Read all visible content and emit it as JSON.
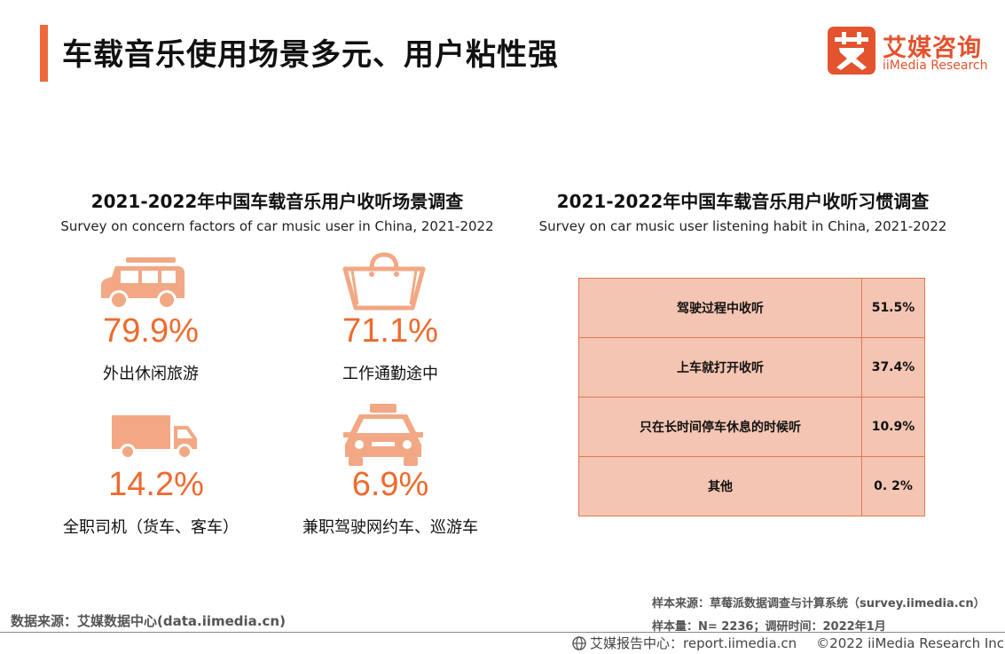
{
  "header": {
    "title": "车载音乐使用场景多元、用户粘性强",
    "logo_cn": "艾媒咨询",
    "logo_en": "iiMedia Research",
    "accent_color": "#EE6A3A"
  },
  "left_section": {
    "title": "2021-2022年中国车载音乐用户收听场景调查",
    "subtitle": "Survey on concern factors of car music user in China, 2021-2022",
    "items": [
      {
        "icon": "suv-icon",
        "value": "79.9%",
        "label": "外出休闲旅游"
      },
      {
        "icon": "handbag-icon",
        "value": "71.1%",
        "label": "工作通勤途中"
      },
      {
        "icon": "truck-icon",
        "value": "14.2%",
        "label": "全职司机（货车、客车）"
      },
      {
        "icon": "taxi-icon",
        "value": "6.9%",
        "label": "兼职驾驶网约车、巡游车"
      }
    ]
  },
  "right_section": {
    "title": "2021-2022年中国车载音乐用户收听习惯调查",
    "subtitle": "Survey on car music user listening habit in China, 2021-2022",
    "rows": [
      {
        "name": "驾驶过程中收听",
        "value": "51.5%"
      },
      {
        "name": "上车就打开收听",
        "value": "37.4%"
      },
      {
        "name": "只在长时间停车休息的时候听",
        "value": "10.9%"
      },
      {
        "name": "其他",
        "value": "0. 2%"
      }
    ]
  },
  "footer": {
    "data_source": "数据来源：艾媒数据中心(data.iimedia.cn)",
    "sample_source": "样本来源：草莓派数据调查与计算系统（survey.iimedia.cn）",
    "sample_size": "样本量：N= 2236；调研时间：2022年1月",
    "report_center": "艾媒报告中心：report.iimedia.cn",
    "copyright": "©2022  iiMedia Research  Inc"
  }
}
